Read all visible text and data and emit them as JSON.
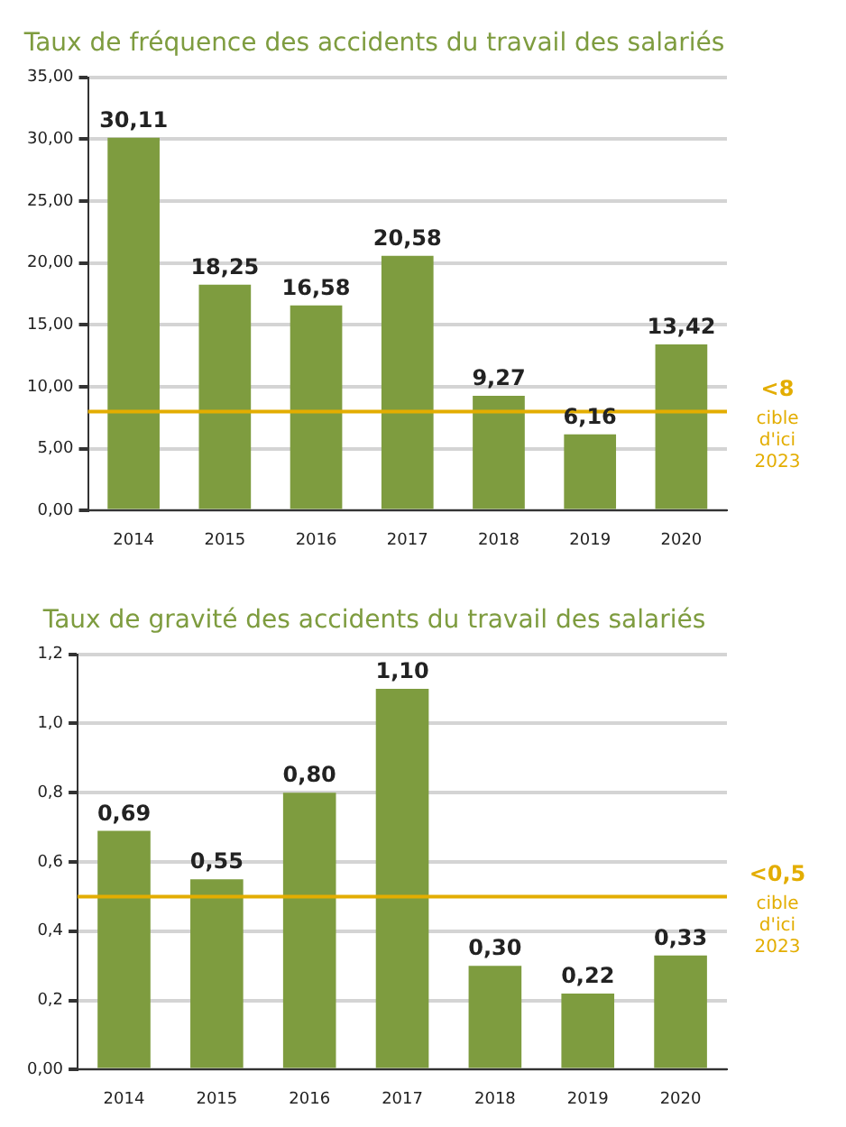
{
  "chart_data": [
    {
      "type": "bar",
      "title": "Taux de fréquence des accidents du travail des salariés",
      "categories": [
        "2014",
        "2015",
        "2016",
        "2017",
        "2018",
        "2019",
        "2020"
      ],
      "values": [
        30.11,
        18.25,
        16.58,
        20.58,
        9.27,
        6.16,
        13.42
      ],
      "value_labels": [
        "30,11",
        "18,25",
        "16,58",
        "20,58",
        "9,27",
        "6,16",
        "13,42"
      ],
      "color": "#7e9c3f",
      "ylim": [
        0,
        35
      ],
      "yticks": [
        {
          "value": 0,
          "label": "0,00"
        },
        {
          "value": 5,
          "label": "5,00"
        },
        {
          "value": 10,
          "label": "10,00"
        },
        {
          "value": 15,
          "label": "15,00"
        },
        {
          "value": 20,
          "label": "20,00"
        },
        {
          "value": 25,
          "label": "25,00"
        },
        {
          "value": 30,
          "label": "30,00"
        },
        {
          "value": 35,
          "label": "35,00"
        }
      ],
      "grid": "y",
      "legend": false,
      "ref_lines": [
        {
          "axis": "y",
          "value": 8,
          "label": "<8 cible d'ici 2023",
          "color": "#e3ad00"
        }
      ]
    },
    {
      "type": "bar",
      "title": "Taux de gravité des accidents du travail des salariés",
      "categories": [
        "2014",
        "2015",
        "2016",
        "2017",
        "2018",
        "2019",
        "2020"
      ],
      "values": [
        0.69,
        0.55,
        0.8,
        1.1,
        0.3,
        0.22,
        0.33
      ],
      "value_labels": [
        "0,69",
        "0,55",
        "0,80",
        "1,10",
        "0,30",
        "0,22",
        "0,33"
      ],
      "color": "#7e9c3f",
      "ylim": [
        0,
        1.2
      ],
      "yticks": [
        {
          "value": 0,
          "label": "0,00"
        },
        {
          "value": 0.2,
          "label": "0,2"
        },
        {
          "value": 0.4,
          "label": "0,4"
        },
        {
          "value": 0.6,
          "label": "0,6"
        },
        {
          "value": 0.8,
          "label": "0,8"
        },
        {
          "value": 1,
          "label": "1,0"
        },
        {
          "value": 1.2,
          "label": "1,2"
        }
      ],
      "grid": "y",
      "legend": false,
      "ref_lines": [
        {
          "axis": "y",
          "value": 0.5,
          "label": "<0,5 cible d'ici 2023",
          "color": "#e3ad00"
        }
      ]
    }
  ]
}
